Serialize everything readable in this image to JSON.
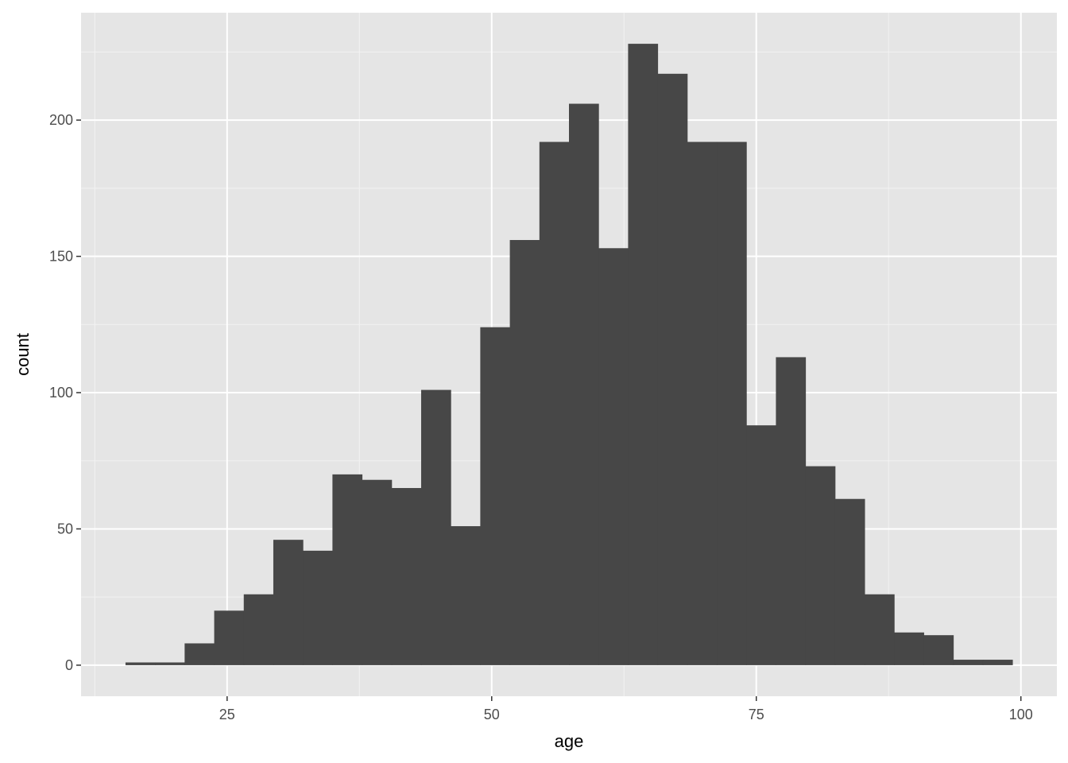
{
  "chart_data": {
    "type": "bar",
    "subtype": "histogram",
    "title": "",
    "xlabel": "age",
    "ylabel": "count",
    "xlim": [
      11.2,
      103.4
    ],
    "ylim": [
      -11.4,
      239.4
    ],
    "bin_range": [
      15.4,
      99.2
    ],
    "bins": 30,
    "values": [
      1,
      1,
      8,
      20,
      26,
      46,
      42,
      70,
      68,
      65,
      101,
      51,
      124,
      156,
      192,
      206,
      153,
      228,
      217,
      192,
      192,
      88,
      113,
      73,
      61,
      26,
      12,
      11,
      2,
      2
    ],
    "x_ticks": [
      25,
      50,
      75,
      100
    ],
    "x_tick_labels": [
      "25",
      "50",
      "75",
      "100"
    ],
    "y_ticks": [
      0,
      50,
      100,
      150,
      200
    ],
    "y_tick_labels": [
      "0",
      "50",
      "100",
      "150",
      "200"
    ],
    "grid": true,
    "colors": {
      "bar": "#474747",
      "panel": "#e5e5e5",
      "grid": "#ffffff"
    }
  }
}
